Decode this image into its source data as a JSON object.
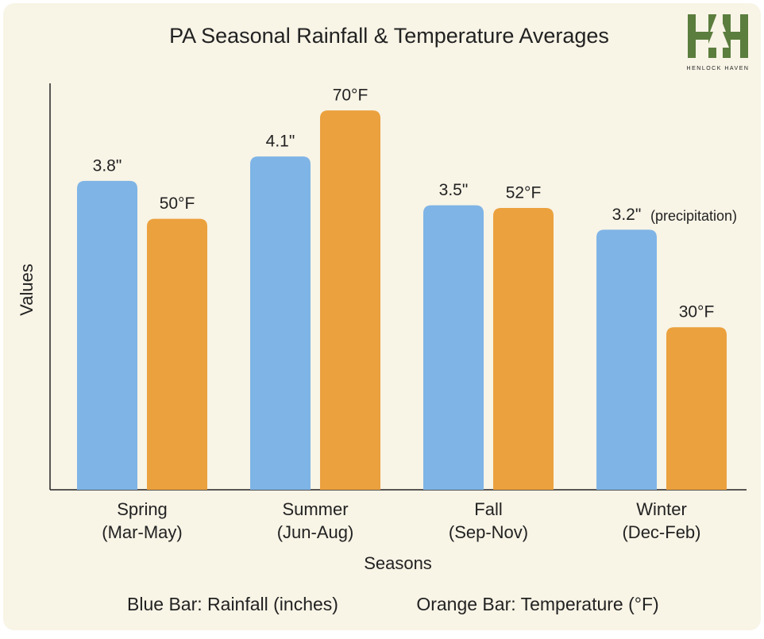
{
  "chart_data": {
    "type": "bar",
    "title": "PA Seasonal Rainfall & Temperature Averages",
    "logo_text": "HENLOCK HAVEN",
    "xlabel": "Seasons",
    "ylabel": "Values",
    "categories": [
      [
        "Spring",
        "(Mar-May)"
      ],
      [
        "Summer",
        "(Jun-Aug)"
      ],
      [
        "Fall",
        "(Sep-Nov)"
      ],
      [
        "Winter",
        "(Dec-Feb)"
      ]
    ],
    "series": [
      {
        "name": "Blue Bar: Rainfall (inches)",
        "color": "#7fb4e6",
        "values": [
          3.8,
          4.1,
          3.5,
          3.2
        ],
        "value_labels": [
          "3.8\"",
          "4.1\"",
          "3.5\"",
          "3.2\""
        ]
      },
      {
        "name": "Orange Bar: Temperature (°F)",
        "color": "#eba13e",
        "axis": "y2",
        "values": [
          50,
          70,
          52,
          30
        ],
        "value_labels": [
          "50°F",
          "70°F",
          "52°F",
          "30°F"
        ]
      }
    ],
    "annotations": [
      {
        "series": 0,
        "index": 3,
        "text": "(precipitation)"
      }
    ],
    "ylim": [
      0,
      5
    ],
    "y2lim": [
      0,
      75
    ]
  }
}
